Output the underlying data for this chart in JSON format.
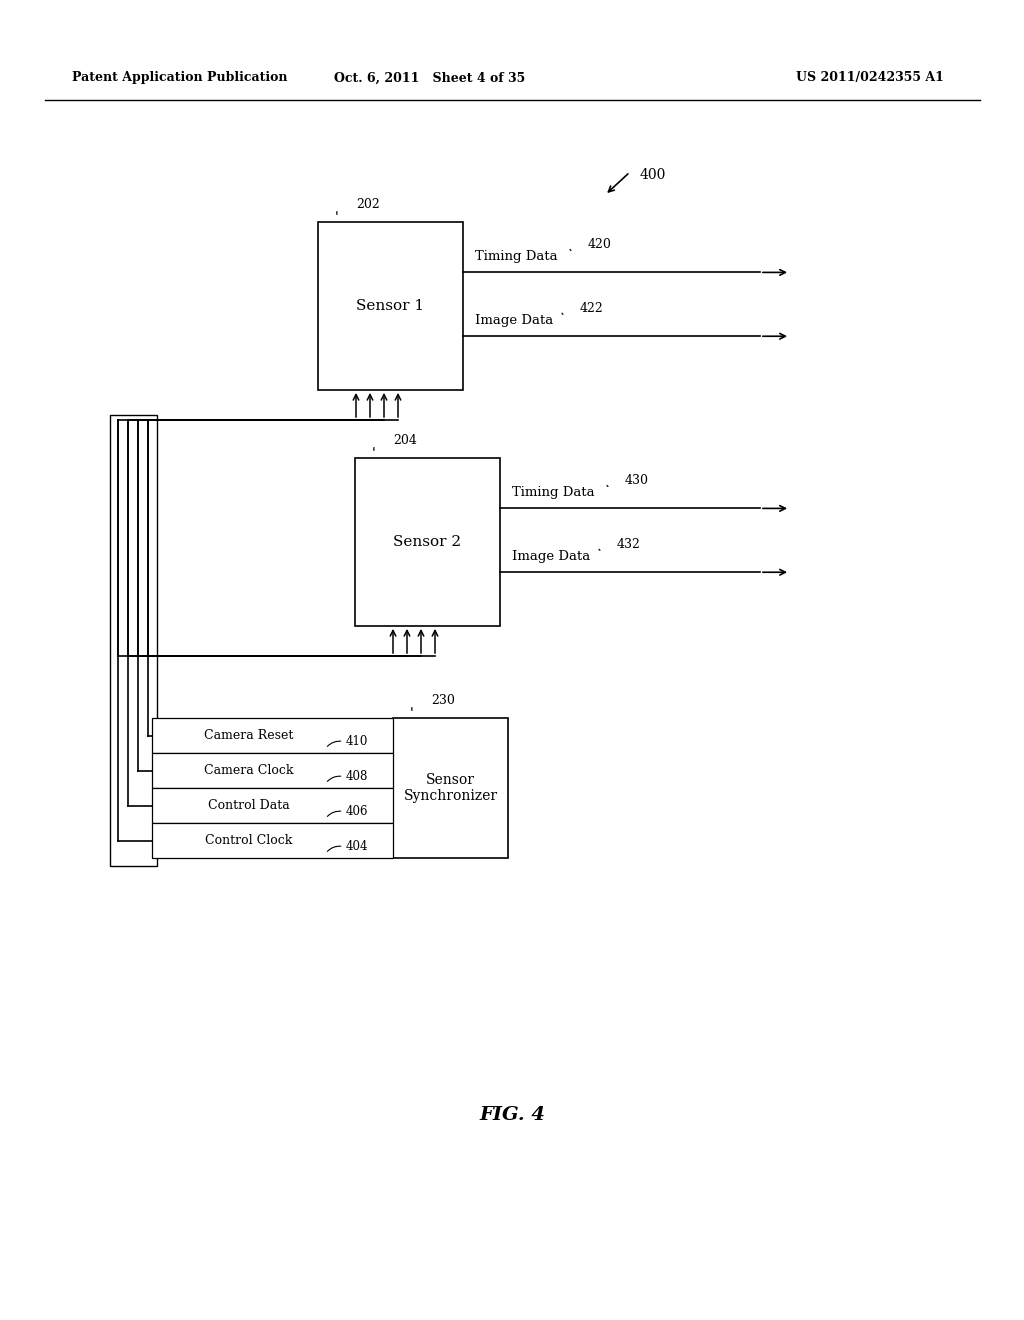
{
  "bg_color": "#ffffff",
  "header_left": "Patent Application Publication",
  "header_mid": "Oct. 6, 2011   Sheet 4 of 35",
  "header_right": "US 2011/0242355 A1",
  "fig_label": "FIG. 4",
  "diagram_label": "400",
  "sensor1_label": "Sensor 1",
  "sensor1_ref": "202",
  "sensor2_label": "Sensor 2",
  "sensor2_ref": "204",
  "synch_label": "Sensor\nSynchronizer",
  "synch_ref": "230",
  "timing_data1": "Timing Data",
  "timing_data1_ref": "420",
  "image_data1": "Image Data",
  "image_data1_ref": "422",
  "timing_data2": "Timing Data",
  "timing_data2_ref": "430",
  "image_data2": "Image Data",
  "image_data2_ref": "432",
  "bus_labels": [
    "Camera Reset",
    "Camera Clock",
    "Control Data",
    "Control Clock"
  ],
  "bus_refs": [
    "410",
    "408",
    "406",
    "404"
  ]
}
